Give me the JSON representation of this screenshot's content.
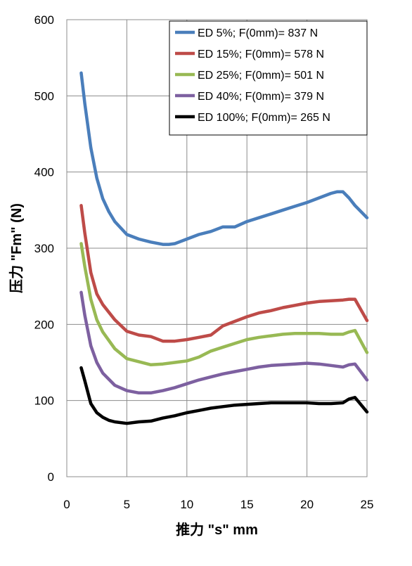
{
  "chart_data": {
    "type": "line",
    "xlabel": "推力 \"s\" mm",
    "ylabel": "压力 \"Fm\" (N)",
    "xlim": [
      0,
      25
    ],
    "ylim": [
      0,
      600
    ],
    "x_ticks": [
      "0",
      "5",
      "10",
      "15",
      "20",
      "25"
    ],
    "y_ticks": [
      "0",
      "100",
      "200",
      "300",
      "400",
      "500",
      "600"
    ],
    "grid": true,
    "legend_position": "top-right",
    "series": [
      {
        "name": "ED 5%; F(0mm)= 837 N",
        "color": "#4a7ebb",
        "x": [
          1.2,
          1.5,
          2,
          2.5,
          3,
          3.5,
          4,
          5,
          6,
          7,
          8,
          8.5,
          9,
          10,
          11,
          12,
          13,
          14,
          15,
          16,
          17,
          18,
          19,
          20,
          21,
          22,
          22.5,
          23,
          23.5,
          24,
          25
        ],
        "y": [
          530,
          490,
          432,
          392,
          365,
          348,
          335,
          318,
          312,
          308,
          305,
          305,
          306,
          312,
          318,
          322,
          328,
          328,
          335,
          340,
          345,
          350,
          355,
          360,
          366,
          372,
          374,
          374,
          366,
          356,
          340
        ]
      },
      {
        "name": "ED 15%; F(0mm)= 578 N",
        "color": "#be4b48",
        "x": [
          1.2,
          1.5,
          2,
          2.5,
          3,
          4,
          5,
          6,
          7,
          8,
          9,
          10,
          11,
          12,
          13,
          14,
          15,
          16,
          17,
          18,
          19,
          20,
          21,
          22,
          23,
          23.5,
          24,
          25
        ],
        "y": [
          356,
          320,
          268,
          240,
          226,
          206,
          191,
          186,
          184,
          178,
          178,
          180,
          183,
          186,
          198,
          204,
          210,
          215,
          218,
          222,
          225,
          228,
          230,
          231,
          232,
          233,
          233,
          205
        ]
      },
      {
        "name": "ED 25%; F(0mm)= 501 N",
        "color": "#98b954",
        "x": [
          1.2,
          1.5,
          2,
          2.5,
          3,
          4,
          5,
          6,
          7,
          8,
          9,
          10,
          11,
          12,
          13,
          14,
          15,
          16,
          17,
          18,
          19,
          20,
          21,
          22,
          23,
          23.5,
          24,
          25
        ],
        "y": [
          306,
          276,
          233,
          206,
          190,
          168,
          155,
          151,
          147,
          148,
          150,
          152,
          157,
          165,
          170,
          175,
          180,
          183,
          185,
          187,
          188,
          188,
          188,
          187,
          187,
          190,
          192,
          163
        ]
      },
      {
        "name": "ED 40%; F(0mm)= 379 N",
        "color": "#7d60a0",
        "x": [
          1.2,
          1.5,
          2,
          2.5,
          3,
          4,
          5,
          6,
          7,
          8,
          9,
          10,
          11,
          12,
          13,
          14,
          15,
          16,
          17,
          18,
          19,
          20,
          21,
          22,
          23,
          23.5,
          24,
          25
        ],
        "y": [
          242,
          212,
          172,
          150,
          136,
          120,
          113,
          110,
          110,
          113,
          117,
          122,
          127,
          131,
          135,
          138,
          141,
          144,
          146,
          147,
          148,
          149,
          148,
          146,
          144,
          147,
          148,
          127
        ]
      },
      {
        "name": "ED 100%; F(0mm)= 265 N",
        "color": "#000000",
        "x": [
          1.2,
          1.5,
          2,
          2.5,
          3,
          3.5,
          4,
          5,
          6,
          7,
          8,
          9,
          10,
          11,
          12,
          13,
          14,
          15,
          16,
          17,
          18,
          19,
          20,
          21,
          22,
          23,
          23.5,
          24,
          25
        ],
        "y": [
          143,
          126,
          96,
          84,
          78,
          74,
          72,
          70,
          72,
          73,
          77,
          80,
          84,
          87,
          90,
          92,
          94,
          95,
          96,
          97,
          97,
          97,
          97,
          96,
          96,
          97,
          102,
          104,
          85
        ]
      }
    ]
  }
}
